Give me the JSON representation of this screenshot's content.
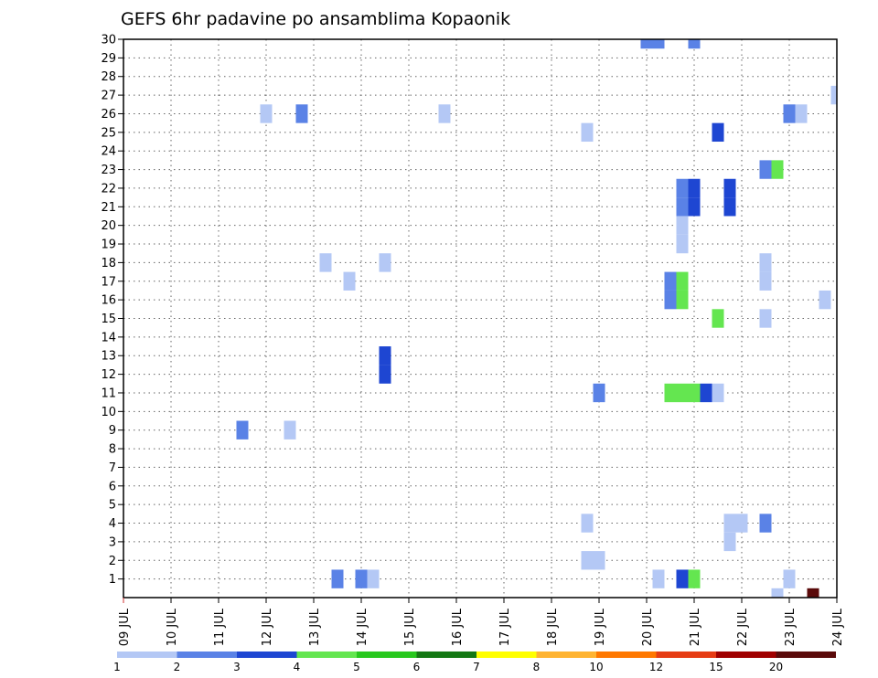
{
  "chart_data": {
    "type": "heatmap",
    "title": "GEFS 6hr padavine po ansamblima Kopaonik",
    "xlabel": "",
    "ylabel": "",
    "x_tick_labels": [
      "09 JUL",
      "10 JUL",
      "11 JUL",
      "12 JUL",
      "13 JUL",
      "14 JUL",
      "15 JUL",
      "16 JUL",
      "17 JUL",
      "18 JUL",
      "19 JUL",
      "20 JUL",
      "21 JUL",
      "22 JUL",
      "23 JUL",
      "24 JUL"
    ],
    "xlim": [
      9,
      24
    ],
    "ylim": [
      0,
      30
    ],
    "y_ticks": [
      1,
      2,
      3,
      4,
      5,
      6,
      7,
      8,
      9,
      10,
      11,
      12,
      13,
      14,
      15,
      16,
      17,
      18,
      19,
      20,
      21,
      22,
      23,
      24,
      25,
      26,
      27,
      28,
      29,
      30
    ],
    "grid": true,
    "time_step_days": 0.25,
    "legend": {
      "placement": "bottom",
      "labels": [
        "1",
        "2",
        "3",
        "4",
        "5",
        "6",
        "7",
        "8",
        "10",
        "12",
        "15",
        "20"
      ],
      "colors": [
        "#b4c8f5",
        "#5a82e6",
        "#1e46d2",
        "#64e650",
        "#28c81e",
        "#147814",
        "#ffff00",
        "#ffb432",
        "#ff7800",
        "#e63c14",
        "#a00000",
        "#5a0a0a"
      ]
    },
    "cells": [
      {
        "member": 30,
        "t": 20.0,
        "value": 2
      },
      {
        "member": 30,
        "t": 20.25,
        "value": 2
      },
      {
        "member": 30,
        "t": 21.0,
        "value": 2
      },
      {
        "member": 27,
        "t": 24.0,
        "value": 1
      },
      {
        "member": 26,
        "t": 12.0,
        "value": 1
      },
      {
        "member": 26,
        "t": 12.75,
        "value": 2
      },
      {
        "member": 26,
        "t": 15.75,
        "value": 1
      },
      {
        "member": 26,
        "t": 23.0,
        "value": 2
      },
      {
        "member": 26,
        "t": 23.25,
        "value": 1
      },
      {
        "member": 25,
        "t": 18.75,
        "value": 1
      },
      {
        "member": 25,
        "t": 21.5,
        "value": 3
      },
      {
        "member": 23,
        "t": 22.5,
        "value": 2
      },
      {
        "member": 23,
        "t": 22.75,
        "value": 4
      },
      {
        "member": 22,
        "t": 20.75,
        "value": 2
      },
      {
        "member": 22,
        "t": 21.0,
        "value": 3
      },
      {
        "member": 22,
        "t": 21.75,
        "value": 3
      },
      {
        "member": 21,
        "t": 20.75,
        "value": 2
      },
      {
        "member": 21,
        "t": 21.0,
        "value": 3
      },
      {
        "member": 21,
        "t": 21.75,
        "value": 3
      },
      {
        "member": 20,
        "t": 20.75,
        "value": 1
      },
      {
        "member": 19,
        "t": 20.75,
        "value": 1
      },
      {
        "member": 18,
        "t": 13.25,
        "value": 1
      },
      {
        "member": 18,
        "t": 14.5,
        "value": 1
      },
      {
        "member": 18,
        "t": 22.5,
        "value": 1
      },
      {
        "member": 17,
        "t": 13.75,
        "value": 1
      },
      {
        "member": 17,
        "t": 20.5,
        "value": 2
      },
      {
        "member": 17,
        "t": 20.75,
        "value": 4
      },
      {
        "member": 17,
        "t": 22.5,
        "value": 1
      },
      {
        "member": 16,
        "t": 20.5,
        "value": 2
      },
      {
        "member": 16,
        "t": 20.75,
        "value": 4
      },
      {
        "member": 16,
        "t": 23.75,
        "value": 1
      },
      {
        "member": 15,
        "t": 21.5,
        "value": 4
      },
      {
        "member": 15,
        "t": 22.5,
        "value": 1
      },
      {
        "member": 13,
        "t": 14.5,
        "value": 3
      },
      {
        "member": 12,
        "t": 14.5,
        "value": 3
      },
      {
        "member": 11,
        "t": 19.0,
        "value": 2
      },
      {
        "member": 11,
        "t": 20.5,
        "value": 4
      },
      {
        "member": 11,
        "t": 20.75,
        "value": 4
      },
      {
        "member": 11,
        "t": 21.0,
        "value": 4
      },
      {
        "member": 11,
        "t": 21.25,
        "value": 3
      },
      {
        "member": 11,
        "t": 21.5,
        "value": 1
      },
      {
        "member": 9,
        "t": 11.5,
        "value": 2
      },
      {
        "member": 9,
        "t": 12.5,
        "value": 1
      },
      {
        "member": 4,
        "t": 18.75,
        "value": 1
      },
      {
        "member": 4,
        "t": 21.75,
        "value": 1
      },
      {
        "member": 4,
        "t": 22.0,
        "value": 1
      },
      {
        "member": 4,
        "t": 22.5,
        "value": 2
      },
      {
        "member": 3,
        "t": 21.75,
        "value": 1
      },
      {
        "member": 2,
        "t": 18.75,
        "value": 1
      },
      {
        "member": 2,
        "t": 19.0,
        "value": 1
      },
      {
        "member": 1,
        "t": 13.5,
        "value": 2
      },
      {
        "member": 1,
        "t": 14.0,
        "value": 2
      },
      {
        "member": 1,
        "t": 14.25,
        "value": 1
      },
      {
        "member": 1,
        "t": 20.25,
        "value": 1
      },
      {
        "member": 1,
        "t": 20.75,
        "value": 3
      },
      {
        "member": 1,
        "t": 21.0,
        "value": 4
      },
      {
        "member": 1,
        "t": 23.0,
        "value": 1
      },
      {
        "member": 0,
        "t": 22.75,
        "value": 1
      },
      {
        "member": 0,
        "t": 23.5,
        "value": 20
      }
    ]
  }
}
